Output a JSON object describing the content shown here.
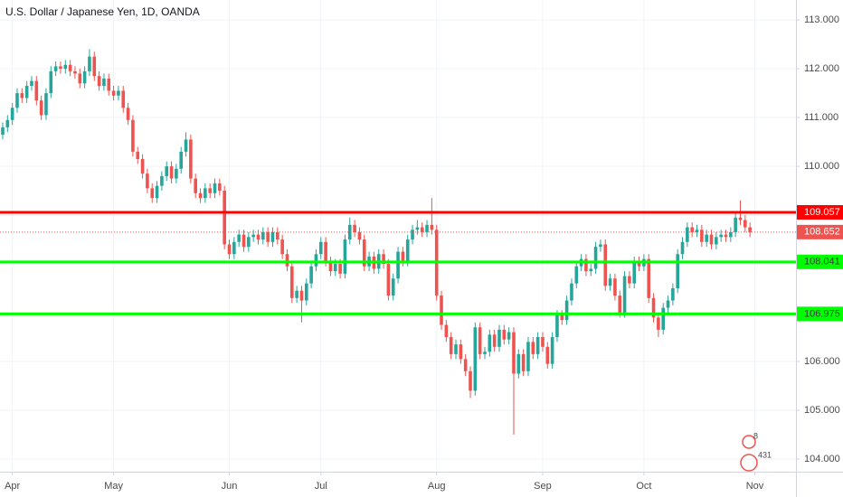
{
  "chart_data": {
    "type": "candlestick",
    "title": "U.S. Dollar / Japanese Yen, 1D, OANDA",
    "categories": [
      null,
      null,
      "Apr",
      null,
      null,
      null,
      null,
      null,
      null,
      null,
      null,
      null,
      null,
      null,
      null,
      null,
      null,
      null,
      null,
      null,
      null,
      null,
      null,
      "May",
      null,
      null,
      null,
      null,
      null,
      null,
      null,
      null,
      null,
      null,
      null,
      null,
      null,
      null,
      null,
      null,
      null,
      null,
      null,
      null,
      null,
      null,
      null,
      "Jun",
      null,
      null,
      null,
      null,
      null,
      null,
      null,
      null,
      null,
      null,
      null,
      null,
      null,
      null,
      null,
      null,
      null,
      null,
      "Jul",
      null,
      null,
      null,
      null,
      null,
      null,
      null,
      null,
      null,
      null,
      null,
      null,
      null,
      null,
      null,
      null,
      null,
      null,
      null,
      null,
      null,
      null,
      null,
      "Aug",
      null,
      null,
      null,
      null,
      null,
      null,
      null,
      null,
      null,
      null,
      null,
      null,
      null,
      null,
      null,
      null,
      null,
      null,
      null,
      null,
      null,
      "Sep",
      null,
      null,
      null,
      null,
      null,
      null,
      null,
      null,
      null,
      null,
      null,
      null,
      null,
      null,
      null,
      null,
      null,
      null,
      null,
      null,
      "Oct",
      null,
      null,
      null,
      null,
      null,
      null,
      null,
      null,
      null,
      null,
      null,
      null,
      null,
      null,
      null,
      null,
      null,
      null,
      null,
      null,
      null,
      null,
      "Nov"
    ],
    "open": [
      110.65,
      110.8,
      110.95,
      111.2,
      111.5,
      111.4,
      111.65,
      111.75,
      111.35,
      111.05,
      111.5,
      111.95,
      112.05,
      112.0,
      112.08,
      111.95,
      111.9,
      111.7,
      111.95,
      112.25,
      111.85,
      111.65,
      111.8,
      111.55,
      111.45,
      111.55,
      111.2,
      110.95,
      110.3,
      110.15,
      109.85,
      109.55,
      109.35,
      109.6,
      109.8,
      110.0,
      109.75,
      109.95,
      110.3,
      110.55,
      109.75,
      109.45,
      109.35,
      109.55,
      109.45,
      109.65,
      109.5,
      108.4,
      108.2,
      108.45,
      108.6,
      108.35,
      108.55,
      108.6,
      108.5,
      108.65,
      108.45,
      108.65,
      108.5,
      108.2,
      107.95,
      107.3,
      107.45,
      107.25,
      107.6,
      107.95,
      108.2,
      108.45,
      108.05,
      107.85,
      108.0,
      107.8,
      108.5,
      108.8,
      108.65,
      108.5,
      107.95,
      108.15,
      107.9,
      108.2,
      108.0,
      107.35,
      107.7,
      108.25,
      108.05,
      108.5,
      108.7,
      108.75,
      108.65,
      108.8,
      108.7,
      107.35,
      106.75,
      106.5,
      106.15,
      106.35,
      106.05,
      105.8,
      105.4,
      106.7,
      106.15,
      106.2,
      106.55,
      106.3,
      106.65,
      106.45,
      106.6,
      105.75,
      106.15,
      105.8,
      106.4,
      106.15,
      106.5,
      106.3,
      105.95,
      106.5,
      106.95,
      106.85,
      107.25,
      107.6,
      107.95,
      108.1,
      107.85,
      107.9,
      108.35,
      108.4,
      107.55,
      107.7,
      107.35,
      107.0,
      107.75,
      107.6,
      108.05,
      107.95,
      108.1,
      107.3,
      106.9,
      106.65,
      107.1,
      107.25,
      107.5,
      108.2,
      108.45,
      108.75,
      108.65,
      108.7,
      108.45,
      108.6,
      108.4,
      108.55,
      108.6,
      108.55,
      108.65,
      108.95,
      108.9,
      108.75,
      null
    ],
    "high": [
      110.9,
      111.05,
      111.3,
      111.6,
      111.6,
      111.75,
      111.85,
      111.85,
      111.45,
      111.6,
      112.05,
      112.15,
      112.15,
      112.18,
      112.18,
      112.05,
      112.0,
      112.05,
      112.4,
      112.35,
      111.95,
      111.9,
      111.9,
      111.65,
      111.65,
      111.65,
      111.3,
      111.05,
      110.4,
      110.25,
      109.95,
      109.65,
      109.7,
      109.9,
      110.1,
      110.1,
      110.05,
      110.4,
      110.7,
      110.65,
      109.85,
      109.55,
      109.65,
      109.65,
      109.75,
      109.75,
      109.6,
      108.5,
      108.55,
      108.7,
      108.7,
      108.65,
      108.7,
      108.7,
      108.75,
      108.75,
      108.75,
      108.75,
      108.6,
      108.3,
      108.05,
      107.55,
      107.55,
      107.7,
      108.05,
      108.3,
      108.55,
      108.55,
      108.15,
      108.1,
      108.1,
      108.6,
      108.95,
      108.9,
      108.75,
      108.6,
      108.25,
      108.25,
      108.3,
      108.3,
      108.1,
      107.8,
      108.35,
      108.35,
      108.6,
      108.8,
      108.9,
      108.85,
      108.9,
      109.35,
      108.8,
      107.45,
      106.85,
      106.6,
      106.45,
      106.45,
      106.15,
      105.9,
      106.8,
      106.8,
      106.3,
      106.65,
      106.65,
      106.75,
      106.75,
      106.7,
      106.7,
      106.25,
      106.25,
      106.5,
      106.5,
      106.6,
      106.6,
      106.4,
      106.6,
      107.05,
      107.05,
      107.35,
      107.7,
      108.05,
      108.2,
      108.2,
      108.0,
      108.45,
      108.5,
      108.5,
      107.8,
      107.8,
      107.45,
      107.85,
      107.85,
      108.15,
      108.15,
      108.2,
      108.2,
      107.4,
      107.0,
      107.2,
      107.35,
      107.6,
      108.3,
      108.55,
      108.85,
      108.85,
      108.8,
      108.8,
      108.7,
      108.7,
      108.65,
      108.7,
      108.7,
      108.75,
      109.05,
      109.3,
      109.0,
      108.85,
      null
    ],
    "low": [
      110.55,
      110.7,
      110.85,
      111.1,
      111.3,
      111.3,
      111.55,
      111.25,
      110.95,
      110.95,
      111.4,
      111.85,
      111.9,
      111.9,
      111.85,
      111.8,
      111.6,
      111.6,
      111.85,
      111.75,
      111.55,
      111.55,
      111.45,
      111.35,
      111.35,
      111.1,
      110.85,
      110.2,
      110.05,
      109.75,
      109.45,
      109.25,
      109.25,
      109.5,
      109.7,
      109.65,
      109.65,
      109.85,
      110.2,
      109.65,
      109.35,
      109.25,
      109.25,
      109.35,
      109.35,
      109.4,
      108.3,
      108.1,
      108.1,
      108.35,
      108.25,
      108.25,
      108.45,
      108.4,
      108.4,
      108.35,
      108.35,
      108.4,
      108.1,
      107.85,
      107.2,
      107.2,
      106.8,
      107.15,
      107.5,
      107.85,
      108.1,
      107.95,
      107.75,
      107.75,
      107.7,
      107.7,
      108.4,
      108.55,
      108.4,
      107.85,
      107.85,
      107.8,
      107.8,
      107.9,
      107.25,
      107.25,
      107.6,
      107.95,
      107.95,
      108.4,
      108.6,
      108.55,
      108.55,
      108.6,
      107.25,
      106.65,
      106.4,
      106.05,
      106.05,
      105.95,
      105.7,
      105.25,
      105.3,
      106.05,
      106.05,
      106.1,
      106.2,
      106.2,
      106.35,
      106.35,
      104.5,
      105.65,
      105.7,
      105.7,
      106.05,
      106.05,
      106.2,
      105.85,
      105.85,
      106.4,
      106.75,
      106.75,
      107.15,
      107.5,
      107.85,
      107.75,
      107.75,
      107.8,
      108.25,
      107.45,
      107.45,
      107.25,
      106.9,
      106.9,
      107.5,
      107.5,
      107.85,
      107.85,
      107.2,
      106.8,
      106.5,
      106.55,
      107.0,
      107.15,
      107.4,
      108.1,
      108.35,
      108.55,
      108.55,
      108.35,
      108.35,
      108.3,
      108.3,
      108.45,
      108.45,
      108.45,
      108.55,
      108.8,
      108.65,
      108.55,
      null
    ],
    "close": [
      110.8,
      110.95,
      111.2,
      111.5,
      111.4,
      111.65,
      111.75,
      111.35,
      111.05,
      111.5,
      111.95,
      112.05,
      112.0,
      112.08,
      111.95,
      111.9,
      111.7,
      111.95,
      112.25,
      111.85,
      111.65,
      111.8,
      111.55,
      111.45,
      111.55,
      111.2,
      110.95,
      110.3,
      110.15,
      109.85,
      109.55,
      109.35,
      109.6,
      109.8,
      110.0,
      109.75,
      109.95,
      110.3,
      110.55,
      109.75,
      109.45,
      109.35,
      109.55,
      109.45,
      109.65,
      109.5,
      108.4,
      108.2,
      108.45,
      108.6,
      108.35,
      108.55,
      108.6,
      108.5,
      108.65,
      108.45,
      108.65,
      108.5,
      108.2,
      107.95,
      107.3,
      107.45,
      107.25,
      107.6,
      107.95,
      108.2,
      108.45,
      108.05,
      107.85,
      108.0,
      107.8,
      108.5,
      108.8,
      108.65,
      108.5,
      107.95,
      108.15,
      107.9,
      108.2,
      108.0,
      107.35,
      107.7,
      108.25,
      108.05,
      108.5,
      108.7,
      108.75,
      108.65,
      108.8,
      108.7,
      107.35,
      106.75,
      106.5,
      106.15,
      106.35,
      106.05,
      105.8,
      105.4,
      106.7,
      106.15,
      106.2,
      106.55,
      106.3,
      106.65,
      106.45,
      106.6,
      105.75,
      106.15,
      105.8,
      106.4,
      106.15,
      106.5,
      106.3,
      105.95,
      106.5,
      106.95,
      106.85,
      107.25,
      107.6,
      107.95,
      108.1,
      107.85,
      107.9,
      108.35,
      108.4,
      107.55,
      107.7,
      107.35,
      107.0,
      107.75,
      107.6,
      108.05,
      107.95,
      108.1,
      107.3,
      106.9,
      106.65,
      107.1,
      107.25,
      107.5,
      108.2,
      108.45,
      108.75,
      108.65,
      108.7,
      108.45,
      108.6,
      108.4,
      108.55,
      108.6,
      108.55,
      108.65,
      108.95,
      108.9,
      108.75,
      108.65,
      null
    ],
    "up_color": "#26a69a",
    "down_color": "#ef5350",
    "ylim": [
      103.74,
      113.41
    ],
    "yticks": [
      {
        "value": 104,
        "label": "104.000"
      },
      {
        "value": 105,
        "label": "105.000"
      },
      {
        "value": 106,
        "label": "106.000"
      },
      {
        "value": 107,
        "label": "107.000"
      },
      {
        "value": 108,
        "label": "108.000"
      },
      {
        "value": 109,
        "label": "109.000"
      },
      {
        "value": 110,
        "label": "110.000"
      },
      {
        "value": 111,
        "label": "111.000"
      },
      {
        "value": 112,
        "label": "112.000"
      },
      {
        "value": 113,
        "label": "113.000"
      }
    ],
    "grid": true,
    "levels": [
      {
        "value": 109.057,
        "color": "#ff0000"
      },
      {
        "value": 108.041,
        "color": "#00ff00"
      },
      {
        "value": 106.975,
        "color": "#00ff00"
      }
    ],
    "last_price": {
      "value": 108.652,
      "color": "#ef5350"
    },
    "badge": {
      "comments": "8",
      "likes": "431"
    }
  }
}
